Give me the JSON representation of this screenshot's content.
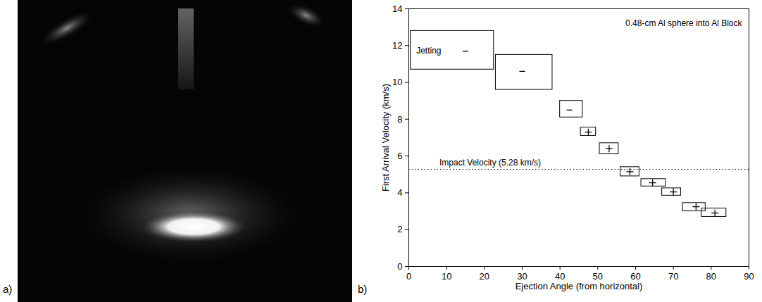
{
  "panel_labels": [
    "a)",
    "b)"
  ],
  "chart_data": {
    "type": "scatter",
    "annotation": "0.48-cm Al sphere into Al Block",
    "x_label": "Ejection Angle (from horizontal)",
    "y_label": "First Arrival Velocity (km/s)",
    "xlim": [
      0,
      90
    ],
    "xticks": [
      0,
      10,
      20,
      30,
      40,
      50,
      60,
      70,
      80,
      90
    ],
    "ylim": [
      0,
      14
    ],
    "yticks": [
      0,
      2,
      4,
      6,
      8,
      10,
      12,
      14
    ],
    "reference_line": {
      "value": 5.28,
      "label": "Impact Velocity (5.28 km/s)",
      "line_style": "dotted"
    },
    "series": [
      {
        "marker": "dash",
        "color": "#000000",
        "x": [
          15,
          30,
          42.5
        ],
        "values": [
          11.7,
          10.6,
          8.5
        ],
        "x_range": [
          [
            0.5,
            22.5
          ],
          [
            23,
            38
          ],
          [
            40,
            46
          ]
        ],
        "y_range": [
          [
            10.7,
            12.8
          ],
          [
            9.6,
            11.5
          ],
          [
            8.1,
            9.0
          ]
        ],
        "point_labels": [
          "Jetting",
          null,
          null
        ]
      },
      {
        "marker": "plus",
        "color": "#000000",
        "x": [
          47.5,
          53,
          58.5,
          64.5,
          70,
          76,
          81
        ],
        "values": [
          7.3,
          6.4,
          5.15,
          4.55,
          4.05,
          3.25,
          2.9
        ],
        "x_range": [
          [
            45.5,
            49.5
          ],
          [
            50.5,
            55.5
          ],
          [
            56,
            61
          ],
          [
            61.5,
            68
          ],
          [
            67,
            72
          ],
          [
            72.5,
            78.5
          ],
          [
            77.5,
            84
          ]
        ],
        "y_range": [
          [
            7.1,
            7.55
          ],
          [
            6.1,
            6.7
          ],
          [
            4.9,
            5.4
          ],
          [
            4.35,
            4.75
          ],
          [
            3.85,
            4.25
          ],
          [
            3.0,
            3.45
          ],
          [
            2.7,
            3.15
          ]
        ]
      }
    ]
  }
}
